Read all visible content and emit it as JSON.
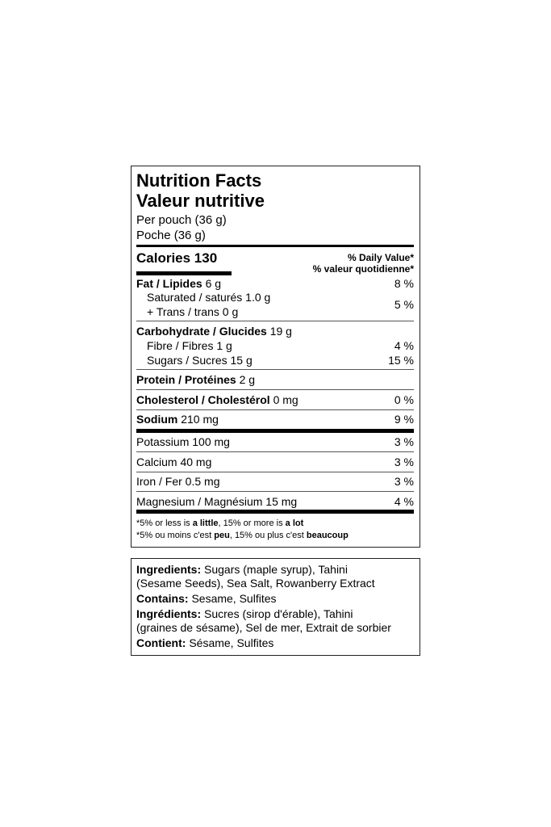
{
  "label": {
    "title_en": "Nutrition Facts",
    "title_fr": "Valeur nutritive",
    "serving_en": "Per pouch (36 g)",
    "serving_fr": "Poche (36 g)",
    "calories_label": "Calories 130",
    "dv_en": "% Daily Value*",
    "dv_fr": "% valeur quotidienne*",
    "fat": {
      "name": "Fat / Lipides",
      "amount": "6 g",
      "dv": "8 %"
    },
    "saturated": {
      "name": "Saturated / saturés 1.0 g"
    },
    "trans": {
      "name": "+ Trans / trans 0 g"
    },
    "sat_trans_dv": "5 %",
    "carb": {
      "name": "Carbohydrate / Glucides",
      "amount": "19 g"
    },
    "fibre": {
      "name": "Fibre / Fibres 1 g",
      "dv": "4 %"
    },
    "sugars": {
      "name": "Sugars / Sucres 15 g",
      "dv": "15 %"
    },
    "protein": {
      "name": "Protein / Protéines",
      "amount": "2 g"
    },
    "cholesterol": {
      "name": "Cholesterol / Cholestérol",
      "amount": "0 mg",
      "dv": "0 %"
    },
    "sodium": {
      "name": "Sodium",
      "amount": "210 mg",
      "dv": "9 %"
    },
    "potassium": {
      "name": "Potassium 100 mg",
      "dv": "3 %"
    },
    "calcium": {
      "name": "Calcium 40 mg",
      "dv": "3 %"
    },
    "iron": {
      "name": "Iron / Fer 0.5 mg",
      "dv": "3 %"
    },
    "magnesium": {
      "name": "Magnesium / Magnésium 15 mg",
      "dv": "4 %"
    },
    "footnote_en": {
      "a": "*5% or less is ",
      "b": "a little",
      ", c": "",
      "c": ", 15% or more is ",
      "d": "a lot"
    },
    "footnote_fr": {
      "a": "*5% ou moins c'est ",
      "b": "peu",
      "c": ", 15% ou plus c'est ",
      "d": "beaucoup"
    }
  },
  "ingredients": {
    "label_en": "Ingredients:",
    "line1": " Sugars (maple syrup), Tahini",
    "line2": "(Sesame Seeds), Sea Salt, Rowanberry Extract",
    "contains_en": "Contains:",
    "contains_en_val": " Sesame, Sulfites",
    "label_fr": "Ingrédients:",
    "line3": " Sucres (sirop d'érable), Tahini",
    "line4": "(graines de sésame), Sel de mer, Extrait de sorbier",
    "contains_fr": "Contient:",
    "contains_fr_val": " Sésame, Sulfites"
  }
}
